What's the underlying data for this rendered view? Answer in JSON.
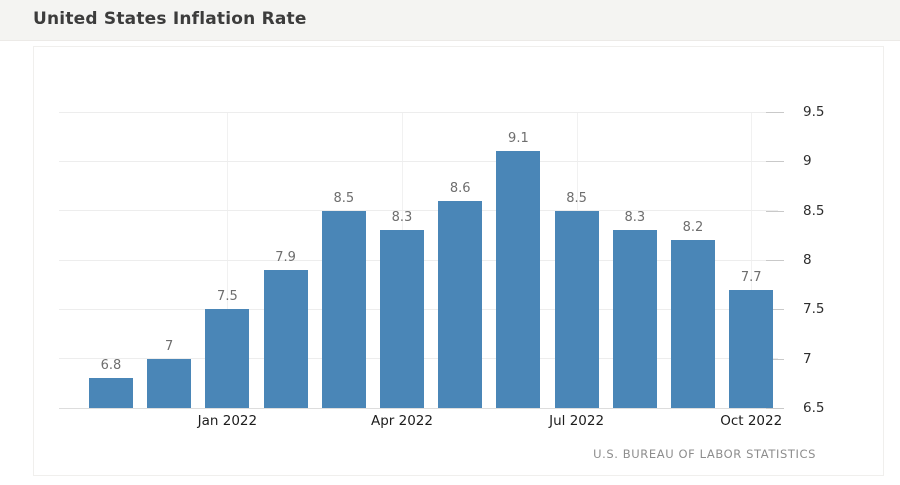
{
  "page": {
    "title": "United States Inflation Rate"
  },
  "chart_data": {
    "type": "bar",
    "title": "United States Inflation Rate",
    "source_label": "U.S. BUREAU OF LABOR STATISTICS",
    "values": [
      6.8,
      7,
      7.5,
      7.9,
      8.5,
      8.3,
      8.6,
      9.1,
      8.5,
      8.3,
      8.2,
      7.7
    ],
    "value_labels": [
      "6.8",
      "7",
      "7.5",
      "7.9",
      "8.5",
      "8.3",
      "8.6",
      "9.1",
      "8.5",
      "8.3",
      "8.2",
      "7.7"
    ],
    "x_axis": {
      "tick_labels": [
        "Jan 2022",
        "Apr 2022",
        "Jul 2022",
        "Oct 2022"
      ],
      "tick_bar_indices": [
        2,
        5,
        8,
        11
      ]
    },
    "y_axis": {
      "position": "right",
      "min": 6.5,
      "max": 9.5,
      "ticks": [
        6.5,
        7,
        7.5,
        8,
        8.5,
        9,
        9.5
      ],
      "tick_labels": [
        "6.5",
        "7",
        "7.5",
        "8",
        "8.5",
        "9",
        "9.5"
      ]
    },
    "grid": true,
    "legend": false,
    "bar_color": "#4a86b7"
  },
  "colors": {
    "bar": "#4a86b7",
    "header_bg": "#f4f4f2",
    "gridline": "#ededed",
    "value_label": "#6e6e6e",
    "axis_label": "#1d1d1d",
    "source_text": "#8d8d8d"
  }
}
